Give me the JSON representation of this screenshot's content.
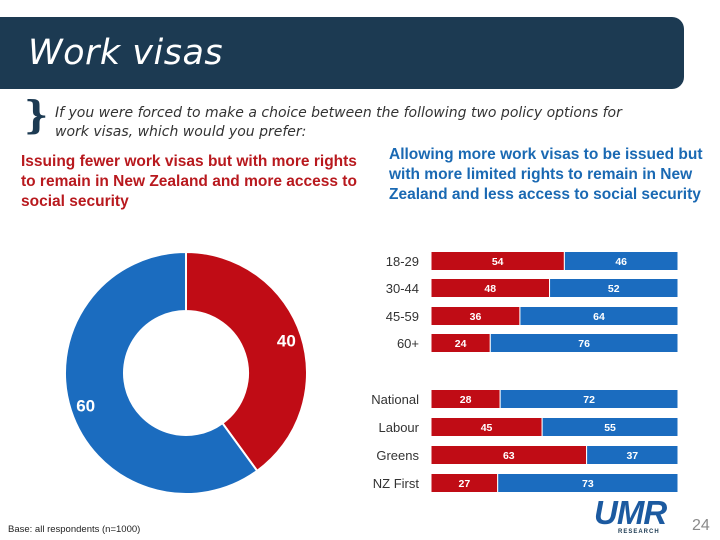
{
  "header": {
    "title": "Work visas"
  },
  "question": "If you were forced to make a choice between the following two policy options for work visas, which would you prefer:",
  "options": {
    "red": "Issuing fewer work visas but with more rights to remain in New Zealand and more access to social security",
    "blue": "Allowing more work visas to be issued but with more limited rights to remain in New Zealand and less access to social security"
  },
  "colors": {
    "red": "#c00c15",
    "blue": "#1b6cbf",
    "header": "#1c3a52"
  },
  "chart_data": [
    {
      "type": "pie",
      "subtype": "donut",
      "labels": [
        "Issuing fewer work visas",
        "Allowing more work visas"
      ],
      "values": [
        40,
        60
      ],
      "value_labels": [
        "40",
        "60"
      ]
    },
    {
      "type": "bar",
      "orientation": "horizontal",
      "stacked": true,
      "categories": [
        "18-29",
        "30-44",
        "45-59",
        "60+",
        "National",
        "Labour",
        "Greens",
        "NZ First"
      ],
      "groups": [
        "age",
        "age",
        "age",
        "age",
        "party",
        "party",
        "party",
        "party"
      ],
      "series": [
        {
          "name": "Issuing fewer work visas",
          "values": [
            54,
            48,
            36,
            24,
            28,
            45,
            63,
            27
          ]
        },
        {
          "name": "Allowing more work visas",
          "values": [
            46,
            52,
            64,
            76,
            72,
            55,
            37,
            73
          ]
        }
      ],
      "xlim": [
        0,
        100
      ]
    }
  ],
  "footer": {
    "base": "Base: all respondents (n=1000)",
    "page": "24"
  },
  "logo": {
    "name": "UMR",
    "sub": "RESEARCH"
  }
}
